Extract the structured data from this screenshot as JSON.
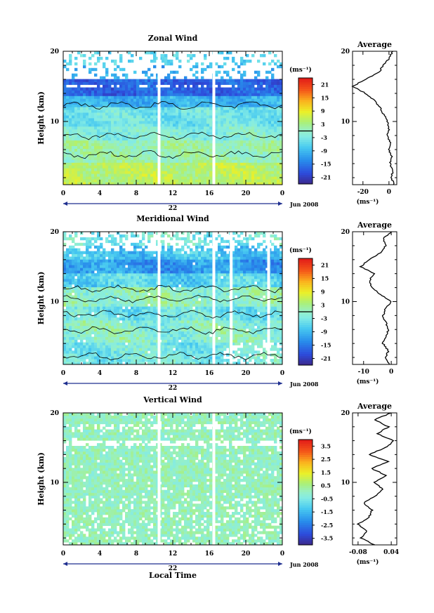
{
  "figure": {
    "xlabel": "Local Time",
    "ylabel": "Height (km)",
    "date_label": "Jun 2008",
    "day_label": "22",
    "unit_label": "(ms⁻¹)",
    "avg_title": "Average",
    "avg_xlabel": "(ms⁻¹)"
  },
  "chart_data": [
    {
      "id": "zonal",
      "type": "heatmap",
      "title": "Zonal Wind",
      "x_ticks": [
        "0",
        "4",
        "8",
        "12",
        "16",
        "20",
        "0"
      ],
      "y_ticks": [
        "10",
        "20"
      ],
      "xlim": [
        0,
        24
      ],
      "ylim": [
        1,
        20
      ],
      "colorbar_ticks": [
        "21",
        "15",
        "9",
        "3",
        "-3",
        "-9",
        "-15",
        "-21"
      ],
      "colorbar_range": [
        -24,
        24
      ],
      "gaps_hours": [
        10.5,
        16.5
      ],
      "average": {
        "x_ticks": [
          "-20",
          "0"
        ],
        "xlim": [
          -28,
          6
        ],
        "height": [
          1,
          2,
          3,
          4,
          5,
          6,
          7,
          8,
          9,
          10,
          11,
          12,
          13,
          14,
          15,
          16,
          17,
          18,
          19,
          20
        ],
        "value": [
          4,
          2,
          3,
          1,
          2,
          0,
          1,
          -1,
          0,
          -1,
          -4,
          -7,
          -11,
          -18,
          -28,
          -18,
          -8,
          -4,
          0,
          3
        ]
      }
    },
    {
      "id": "meridional",
      "type": "heatmap",
      "title": "Meridional Wind",
      "x_ticks": [
        "0",
        "4",
        "8",
        "12",
        "16",
        "20",
        "0"
      ],
      "y_ticks": [
        "10",
        "20"
      ],
      "xlim": [
        0,
        24
      ],
      "ylim": [
        1,
        20
      ],
      "colorbar_ticks": [
        "21",
        "15",
        "9",
        "3",
        "-3",
        "-9",
        "-15",
        "-21"
      ],
      "colorbar_range": [
        -24,
        24
      ],
      "gaps_hours": [
        10.5,
        16.5,
        18.4,
        22.5
      ],
      "average": {
        "x_ticks": [
          "-10",
          "0"
        ],
        "xlim": [
          -14,
          2
        ],
        "height": [
          1,
          2,
          3,
          4,
          5,
          6,
          7,
          8,
          9,
          10,
          11,
          12,
          13,
          14,
          15,
          16,
          17,
          18,
          19,
          20
        ],
        "value": [
          -1,
          -2,
          -1,
          -3,
          -2,
          -1,
          -2,
          -3,
          -2,
          0,
          -4,
          -7,
          -8,
          -6,
          -11,
          -8,
          -4,
          -2,
          -3,
          0
        ]
      }
    },
    {
      "id": "vertical",
      "type": "heatmap",
      "title": "Vertical Wind",
      "x_ticks": [
        "0",
        "4",
        "8",
        "12",
        "16",
        "20",
        "0"
      ],
      "y_ticks": [
        "10",
        "20"
      ],
      "xlim": [
        0,
        24
      ],
      "ylim": [
        1,
        20
      ],
      "colorbar_ticks": [
        "3.5",
        "2.5",
        "1.5",
        "0.5",
        "-0.5",
        "-1.5",
        "-2.5",
        "-3.5"
      ],
      "colorbar_range": [
        -4,
        4
      ],
      "gaps_hours": [
        10.5,
        16.5
      ],
      "average": {
        "x_ticks": [
          "-0.08",
          "0.04"
        ],
        "xlim": [
          -0.1,
          0.06
        ],
        "height": [
          1,
          2,
          3,
          4,
          5,
          6,
          7,
          8,
          9,
          10,
          11,
          12,
          13,
          14,
          15,
          16,
          17,
          18,
          19,
          20
        ],
        "value": [
          -0.02,
          -0.07,
          -0.05,
          -0.08,
          -0.04,
          -0.03,
          -0.06,
          -0.02,
          0.01,
          -0.02,
          0.02,
          -0.03,
          0.03,
          -0.04,
          0.02,
          0.05,
          -0.01,
          0.03,
          -0.02,
          0.04
        ]
      }
    }
  ]
}
